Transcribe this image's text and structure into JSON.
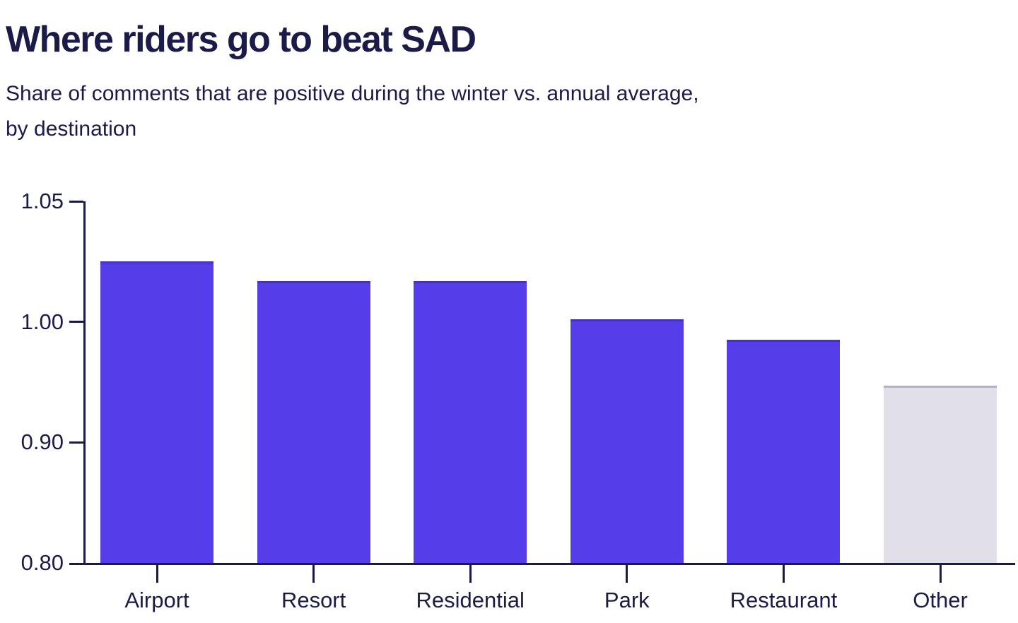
{
  "chart_data": {
    "type": "bar",
    "title": "Where riders go to beat SAD",
    "subtitle_lines": [
      "Share of comments that are positive during the winter vs. annual average,",
      "by destination"
    ],
    "categories": [
      "Airport",
      "Resort",
      "Residential",
      "Park",
      "Restaurant",
      "Other"
    ],
    "values": [
      1.025,
      1.017,
      1.017,
      1.001,
      0.985,
      0.947
    ],
    "bar_colors": [
      "#553EEA",
      "#553EEA",
      "#553EEA",
      "#553EEA",
      "#553EEA",
      "#E1E0E9"
    ],
    "highlight_color": "#553EEA",
    "muted_color": "#E1E0E9",
    "y_tick_labels": [
      "1.05",
      "1.00",
      "0.90",
      "0.80"
    ],
    "y_tick_values": [
      1.05,
      1.0,
      0.9,
      0.8
    ],
    "ylim": [
      0.8,
      1.05
    ],
    "xlabel": "",
    "ylabel": "",
    "grid": false,
    "legend": "none",
    "axis_color": "#1B1B4A",
    "text_color": "#1B1B4A",
    "y_axis_layout": "ticks evenly spaced (0.05 step drawn same height as 0.10 steps)"
  }
}
